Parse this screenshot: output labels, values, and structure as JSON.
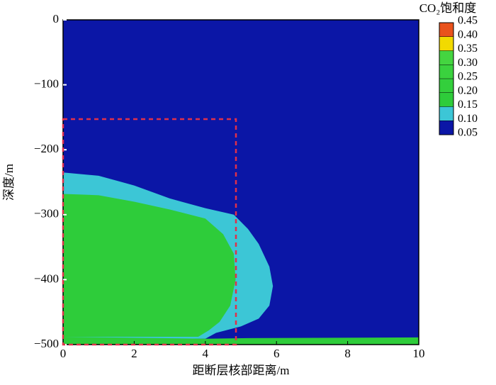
{
  "chart_data": {
    "type": "contour",
    "xlabel": "距断层核部距离/m",
    "ylabel": "深度/m",
    "xlim": [
      0,
      10
    ],
    "ylim": [
      -500,
      0
    ],
    "xticks": [
      0,
      2,
      4,
      6,
      8,
      10
    ],
    "yticks": [
      0,
      {
        "value": -100,
        "label": "−100"
      },
      {
        "value": -200,
        "label": "−200"
      },
      {
        "value": -300,
        "label": "−300"
      },
      {
        "value": -400,
        "label": "−400"
      },
      {
        "value": -500,
        "label": "−500"
      }
    ],
    "colorbar": {
      "title": "CO₂饱和度",
      "levels": [
        0.05,
        {
          "value": 0.1,
          "label": "0.10"
        },
        0.15,
        {
          "value": 0.2,
          "label": "0.20"
        },
        0.25,
        {
          "value": 0.3,
          "label": "0.30"
        },
        0.35,
        {
          "value": 0.4,
          "label": "0.40"
        },
        0.45
      ],
      "colors": [
        "#0b16a6",
        "#3cc6d6",
        "#2ecc3a",
        "#33cf3c",
        "#3ad23e",
        "#44d540",
        "#f2da00",
        "#e9521c"
      ]
    }
  }
}
